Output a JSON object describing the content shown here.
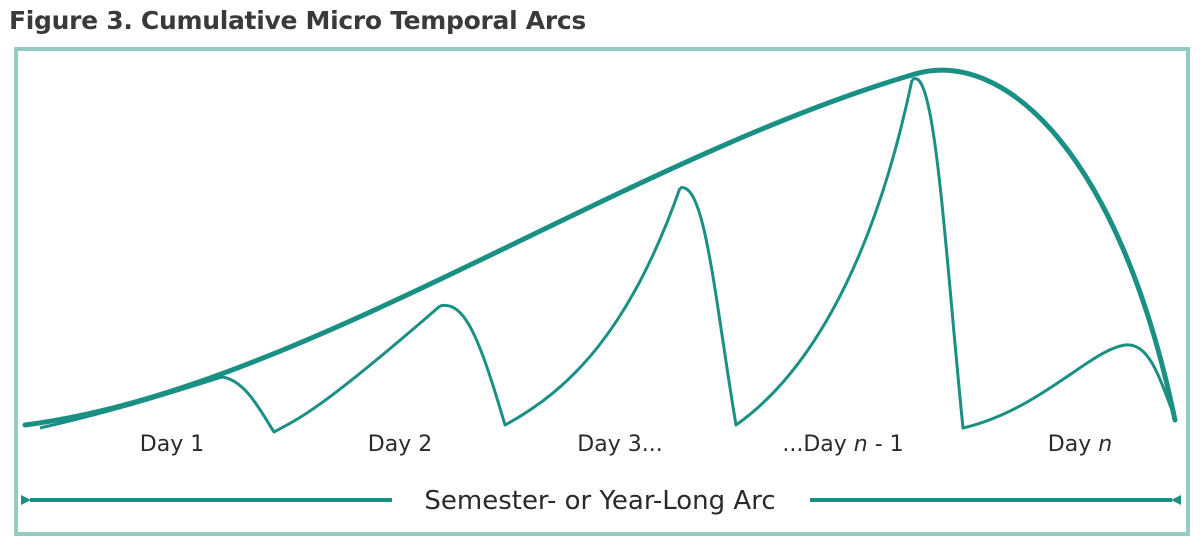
{
  "figure": {
    "title": "Figure 3. Cumulative Micro Temporal Arcs"
  },
  "colors": {
    "curve": "#1a9084",
    "frame": "#96cbc4",
    "title_text": "#3a3a3a",
    "label_text": "#2a2a2a"
  },
  "day_labels": [
    {
      "prefix": "Day 1",
      "italic": "",
      "suffix": ""
    },
    {
      "prefix": "Day 2",
      "italic": "",
      "suffix": ""
    },
    {
      "prefix": "Day 3...",
      "italic": "",
      "suffix": ""
    },
    {
      "prefix": "...Day ",
      "italic": "n",
      "suffix": " - 1"
    },
    {
      "prefix": "Day ",
      "italic": "n",
      "suffix": ""
    }
  ],
  "long_arc": {
    "label": "Semester- or Year-Long Arc"
  }
}
